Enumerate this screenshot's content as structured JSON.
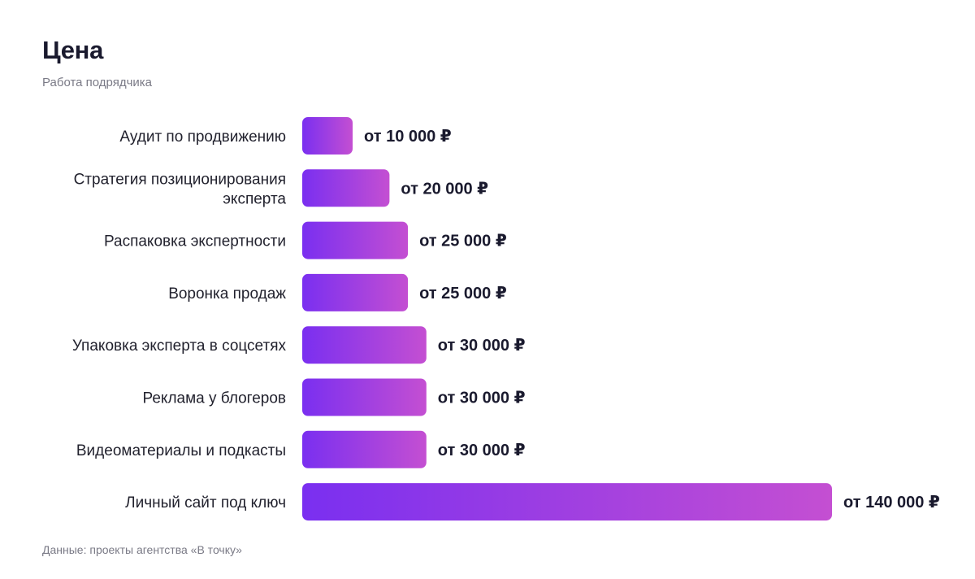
{
  "header": {
    "title": "Цена",
    "subtitle": "Работа подрядчика"
  },
  "footer": {
    "source": "Данные: проекты агентства «В точку»"
  },
  "colors": {
    "bar_start": "#7a2ff0",
    "bar_end": "#c44fd2"
  },
  "chart_data": {
    "type": "bar",
    "orientation": "horizontal",
    "title": "Цена",
    "subtitle": "Работа подрядчика",
    "categories": [
      [
        "Аудит по продвижению"
      ],
      [
        "Стратегия позиционирования",
        "эксперта"
      ],
      [
        "Распаковка экспертности"
      ],
      [
        "Воронка продаж"
      ],
      [
        "Упаковка эксперта в соцсетях"
      ],
      [
        "Реклама у блогеров"
      ],
      [
        "Видеоматериалы и подкасты"
      ],
      [
        "Личный сайт под ключ"
      ]
    ],
    "values": [
      10000,
      20000,
      25000,
      25000,
      30000,
      30000,
      30000,
      140000
    ],
    "value_labels": [
      "от 10 000 ₽",
      "от 20 000 ₽",
      "от 25 000 ₽",
      "от 25 000 ₽",
      "от 30 000 ₽",
      "от 30 000 ₽",
      "от 30 000 ₽",
      "от 140 000 ₽"
    ],
    "xlim": [
      0,
      140000
    ],
    "grid": false,
    "legend": "none"
  }
}
